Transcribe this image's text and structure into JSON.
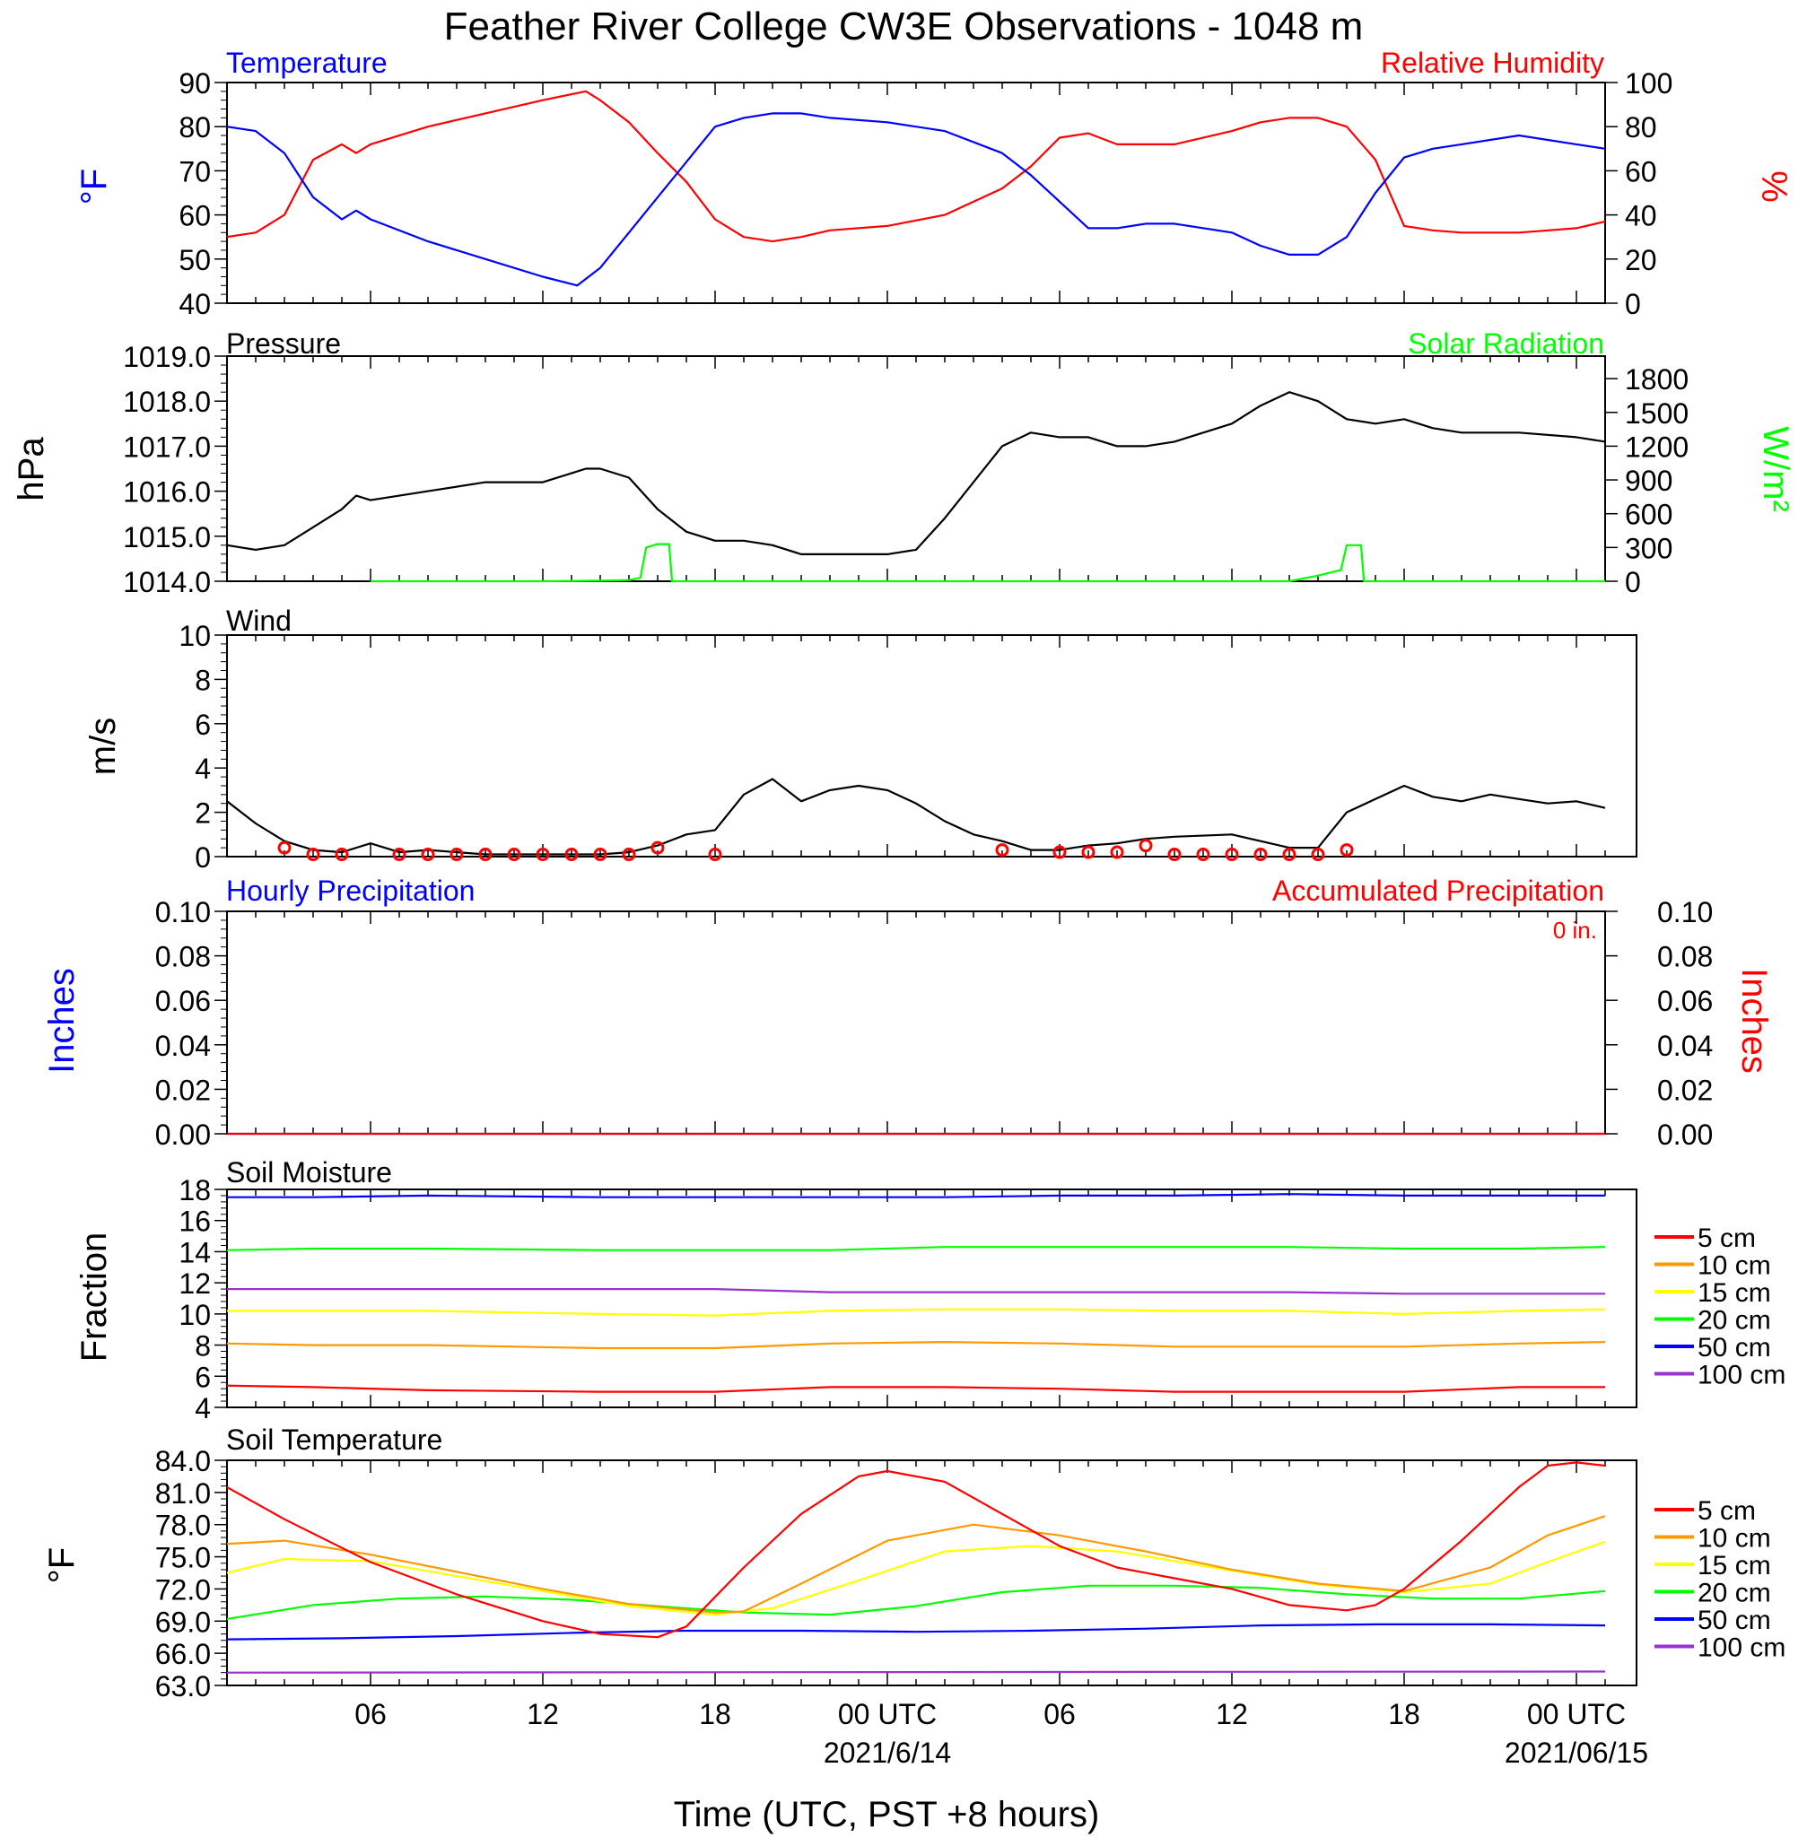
{
  "title": "Feather River College CW3E Observations - 1048 m",
  "x_axis": {
    "label": "Time (UTC, PST +8 hours)",
    "tick_labels": [
      "06",
      "12",
      "18",
      "00 UTC",
      "06",
      "12",
      "18",
      "00 UTC"
    ],
    "tick_hours": [
      6,
      12,
      18,
      24,
      30,
      36,
      42,
      48
    ],
    "dates": [
      "2021/6/14",
      "2021/06/15"
    ],
    "date_hours": [
      24,
      48
    ],
    "range_hours": [
      1,
      49
    ]
  },
  "colors": {
    "blue": "#0000ff",
    "red": "#ff0000",
    "green": "#00ff00",
    "orange": "#ff9900",
    "yellow": "#ffff00",
    "purple": "#9933cc",
    "black": "#000000"
  },
  "panels": {
    "temp": {
      "left_title": "Temperature",
      "right_title": "Relative Humidity",
      "ylabel_left": "°F",
      "ylabel_right": "%",
      "ylim_left": [
        40,
        90
      ],
      "ylim_right": [
        0,
        100
      ],
      "ticks_left": [
        "90",
        "80",
        "70",
        "60",
        "50",
        "40"
      ],
      "ticks_right": [
        "100",
        "80",
        "60",
        "40",
        "20",
        "0"
      ]
    },
    "pressure": {
      "left_title": "Pressure",
      "right_title": "Solar Radiation",
      "ylabel_left": "hPa",
      "ylabel_right": "W/m²",
      "ylim_left": [
        1014,
        1019
      ],
      "ylim_right": [
        0,
        2000
      ],
      "ticks_left": [
        "1019.0",
        "1018.0",
        "1017.0",
        "1016.0",
        "1015.0",
        "1014.0"
      ],
      "ticks_right": [
        "1800",
        "1500",
        "1200",
        "900",
        "600",
        "300",
        "0"
      ]
    },
    "wind": {
      "left_title": "Wind",
      "ylabel_left": "m/s",
      "ylim_left": [
        0,
        10
      ],
      "ticks_left": [
        "10",
        "8",
        "6",
        "4",
        "2",
        "0"
      ]
    },
    "precip": {
      "left_title": "Hourly Precipitation",
      "right_title": "Accumulated Precipitation",
      "total_label": "0 in.",
      "ylabel_left": "Inches",
      "ylabel_right": "Inches",
      "ylim_left": [
        0,
        0.1
      ],
      "ticks_left": [
        "0.10",
        "0.08",
        "0.06",
        "0.04",
        "0.02",
        "0.00"
      ],
      "ticks_right": [
        "0.10",
        "0.08",
        "0.06",
        "0.04",
        "0.02",
        "0.00"
      ]
    },
    "soil_moisture": {
      "left_title": "Soil Moisture",
      "ylabel_left": "Fraction",
      "ylim_left": [
        4,
        18
      ],
      "ticks_left": [
        "18",
        "16",
        "14",
        "12",
        "10",
        "8",
        "6",
        "4"
      ]
    },
    "soil_temp": {
      "left_title": "Soil Temperature",
      "ylabel_left": "°F",
      "ylim_left": [
        63,
        84
      ],
      "ticks_left": [
        "84.0",
        "81.0",
        "78.0",
        "75.0",
        "72.0",
        "69.0",
        "66.0",
        "63.0"
      ]
    }
  },
  "chart_data": [
    {
      "type": "line",
      "name": "temperature_rh",
      "series": [
        {
          "name": "Temperature",
          "axis": "left",
          "color": "#0000ff",
          "x": [
            1,
            2,
            3,
            4,
            5,
            5.5,
            6,
            8,
            10,
            12,
            13.2,
            14,
            15,
            16,
            17,
            18,
            19,
            20,
            21,
            22,
            24,
            26,
            28,
            29,
            30,
            31,
            32,
            33,
            34,
            36,
            37,
            38,
            39,
            40,
            41,
            42,
            43,
            44,
            46,
            48,
            49
          ],
          "y": [
            80,
            79,
            74,
            64,
            59,
            61,
            59,
            54,
            50,
            46,
            44,
            48,
            56,
            64,
            72,
            80,
            82,
            83,
            83,
            82,
            81,
            79,
            74,
            69,
            63,
            57,
            57,
            58,
            58,
            56,
            53,
            51,
            51,
            55,
            65,
            73,
            75,
            76,
            78,
            76,
            75
          ]
        },
        {
          "name": "Relative Humidity",
          "axis": "right",
          "color": "#ff0000",
          "x": [
            1,
            2,
            3,
            4,
            5,
            5.5,
            6,
            8,
            10,
            12,
            13.5,
            14,
            15,
            16,
            17,
            18,
            19,
            20,
            21,
            22,
            24,
            26,
            28,
            29,
            30,
            31,
            32,
            33,
            34,
            36,
            37,
            38,
            39,
            40,
            41,
            42,
            43,
            44,
            46,
            48,
            49
          ],
          "y": [
            30,
            32,
            40,
            65,
            72,
            68,
            72,
            80,
            86,
            92,
            96,
            92,
            82,
            68,
            55,
            38,
            30,
            28,
            30,
            33,
            35,
            40,
            52,
            62,
            75,
            77,
            72,
            72,
            72,
            78,
            82,
            84,
            84,
            80,
            65,
            35,
            33,
            32,
            32,
            34,
            37
          ]
        }
      ]
    },
    {
      "type": "line",
      "name": "pressure_solar",
      "series": [
        {
          "name": "Pressure",
          "axis": "left",
          "color": "#000000",
          "x": [
            1,
            2,
            3,
            4,
            5,
            5.5,
            6,
            8,
            10,
            12,
            13.5,
            14,
            15,
            16,
            17,
            18,
            19,
            20,
            21,
            22,
            24,
            25,
            26,
            27,
            28,
            29,
            30,
            31,
            32,
            33,
            34,
            36,
            37,
            38,
            39,
            40,
            41,
            42,
            43,
            44,
            46,
            48,
            49
          ],
          "y": [
            1014.8,
            1014.7,
            1014.8,
            1015.2,
            1015.6,
            1015.9,
            1015.8,
            1016.0,
            1016.2,
            1016.2,
            1016.5,
            1016.5,
            1016.3,
            1015.6,
            1015.1,
            1014.9,
            1014.9,
            1014.8,
            1014.6,
            1014.6,
            1014.6,
            1014.7,
            1015.4,
            1016.2,
            1017.0,
            1017.3,
            1017.2,
            1017.2,
            1017.0,
            1017.0,
            1017.1,
            1017.5,
            1017.9,
            1018.2,
            1018.0,
            1017.6,
            1017.5,
            1017.6,
            1017.4,
            1017.3,
            1017.3,
            1017.2,
            1017.1
          ]
        },
        {
          "name": "Solar Radiation",
          "axis": "right",
          "color": "#00ff00",
          "x": [
            6,
            8,
            10,
            12,
            14,
            15,
            15.4,
            15.6,
            16,
            16.4,
            16.5,
            30,
            32,
            34,
            36,
            38,
            39,
            39.8,
            40,
            40.5,
            40.6,
            49
          ],
          "y": [
            0,
            0,
            0,
            0,
            5,
            10,
            30,
            300,
            330,
            330,
            0,
            0,
            0,
            0,
            0,
            0,
            50,
            100,
            320,
            320,
            0,
            0
          ]
        }
      ]
    },
    {
      "type": "line",
      "name": "wind",
      "series": [
        {
          "name": "Wind",
          "color": "#000000",
          "x": [
            1,
            2,
            3,
            4,
            5,
            6,
            7,
            8,
            10,
            12,
            14,
            15,
            16,
            17,
            18,
            19,
            20,
            21,
            22,
            23,
            24,
            25,
            26,
            27,
            28,
            29,
            30,
            31,
            32,
            33,
            34,
            36,
            37,
            38,
            39,
            40,
            41,
            42,
            43,
            44,
            45,
            46,
            47,
            48,
            49
          ],
          "y": [
            2.5,
            1.5,
            0.7,
            0.3,
            0.2,
            0.6,
            0.2,
            0.3,
            0.1,
            0.1,
            0.1,
            0.2,
            0.5,
            1.0,
            1.2,
            2.8,
            3.5,
            2.5,
            3.0,
            3.2,
            3.0,
            2.4,
            1.6,
            1.0,
            0.7,
            0.3,
            0.3,
            0.5,
            0.6,
            0.8,
            0.9,
            1.0,
            0.7,
            0.4,
            0.4,
            2.0,
            2.6,
            3.2,
            2.7,
            2.5,
            2.8,
            2.6,
            2.4,
            2.5,
            2.2
          ]
        }
      ]
    },
    {
      "type": "line",
      "name": "precipitation",
      "series": [
        {
          "name": "Hourly Precipitation",
          "color": "#0000ff",
          "x": [
            1,
            49
          ],
          "y": [
            0,
            0
          ]
        },
        {
          "name": "Accumulated Precipitation",
          "color": "#ff0000",
          "x": [
            1,
            49
          ],
          "y": [
            0,
            0
          ]
        }
      ]
    },
    {
      "type": "line",
      "name": "soil_moisture",
      "series": [
        {
          "name": "5 cm",
          "color": "#ff0000",
          "x": [
            1,
            4,
            8,
            14,
            18,
            22,
            26,
            30,
            34,
            38,
            42,
            46,
            49
          ],
          "y": [
            5.4,
            5.3,
            5.1,
            5.0,
            5.0,
            5.3,
            5.3,
            5.2,
            5.0,
            5.0,
            5.0,
            5.3,
            5.3
          ]
        },
        {
          "name": "10 cm",
          "color": "#ff9900",
          "x": [
            1,
            4,
            8,
            14,
            18,
            22,
            26,
            30,
            34,
            38,
            42,
            46,
            49
          ],
          "y": [
            8.1,
            8.0,
            8.0,
            7.8,
            7.8,
            8.1,
            8.2,
            8.1,
            7.9,
            7.9,
            7.9,
            8.1,
            8.2
          ]
        },
        {
          "name": "15 cm",
          "color": "#ffff00",
          "x": [
            1,
            4,
            8,
            14,
            18,
            22,
            26,
            30,
            34,
            38,
            42,
            46,
            49
          ],
          "y": [
            10.2,
            10.2,
            10.2,
            10.0,
            9.9,
            10.2,
            10.3,
            10.3,
            10.2,
            10.2,
            10.0,
            10.2,
            10.3
          ]
        },
        {
          "name": "20 cm",
          "color": "#00ff00",
          "x": [
            1,
            4,
            8,
            14,
            18,
            22,
            26,
            30,
            34,
            38,
            42,
            46,
            49
          ],
          "y": [
            14.1,
            14.2,
            14.2,
            14.1,
            14.1,
            14.1,
            14.3,
            14.3,
            14.3,
            14.3,
            14.2,
            14.2,
            14.3
          ]
        },
        {
          "name": "50 cm",
          "color": "#0000ff",
          "x": [
            1,
            4,
            8,
            14,
            18,
            22,
            26,
            30,
            34,
            38,
            42,
            46,
            49
          ],
          "y": [
            17.5,
            17.5,
            17.6,
            17.5,
            17.5,
            17.5,
            17.5,
            17.6,
            17.6,
            17.7,
            17.6,
            17.6,
            17.6
          ]
        },
        {
          "name": "100 cm",
          "color": "#9933cc",
          "x": [
            1,
            4,
            8,
            14,
            18,
            22,
            26,
            30,
            34,
            38,
            42,
            46,
            49
          ],
          "y": [
            11.6,
            11.6,
            11.6,
            11.6,
            11.6,
            11.4,
            11.4,
            11.4,
            11.4,
            11.4,
            11.3,
            11.3,
            11.3
          ]
        }
      ]
    },
    {
      "type": "line",
      "name": "soil_temperature",
      "series": [
        {
          "name": "5 cm",
          "color": "#ff0000",
          "x": [
            1,
            3,
            6,
            9,
            12,
            14,
            16,
            17,
            19,
            21,
            23,
            24,
            26,
            28,
            30,
            32,
            34,
            36,
            38,
            40,
            41,
            42,
            44,
            46,
            47,
            48,
            49
          ],
          "y": [
            81.5,
            78.5,
            74.5,
            71.5,
            69,
            67.8,
            67.5,
            68.5,
            74,
            79,
            82.5,
            83,
            82,
            79,
            76,
            74,
            73,
            72,
            70.5,
            70,
            70.5,
            72,
            76.5,
            81.5,
            83.5,
            83.8,
            83.5
          ]
        },
        {
          "name": "10 cm",
          "color": "#ff9900",
          "x": [
            1,
            3,
            6,
            9,
            12,
            15,
            18,
            19,
            21,
            24,
            27,
            30,
            33,
            36,
            39,
            42,
            45,
            47,
            49
          ],
          "y": [
            76.2,
            76.5,
            75.2,
            73.6,
            72,
            70.6,
            69.8,
            69.9,
            72.5,
            76.5,
            78,
            77,
            75.5,
            73.8,
            72.5,
            71.8,
            74,
            77,
            78.8
          ]
        },
        {
          "name": "15 cm",
          "color": "#ffff00",
          "x": [
            1,
            3,
            6,
            9,
            12,
            15,
            18,
            20,
            23,
            26,
            29,
            32,
            36,
            39,
            42,
            45,
            47,
            49
          ],
          "y": [
            73.5,
            74.8,
            74.6,
            73.2,
            71.8,
            70.4,
            69.6,
            70.2,
            72.8,
            75.5,
            76,
            75.5,
            73.7,
            72.4,
            71.7,
            72.5,
            74.5,
            76.4
          ]
        },
        {
          "name": "20 cm",
          "color": "#00ff00",
          "x": [
            1,
            4,
            7,
            10,
            13,
            16,
            19,
            22,
            25,
            28,
            31,
            34,
            37,
            40,
            43,
            46,
            49
          ],
          "y": [
            69.2,
            70.5,
            71.1,
            71.3,
            71,
            70.4,
            69.8,
            69.6,
            70.4,
            71.7,
            72.3,
            72.3,
            72.1,
            71.5,
            71.1,
            71.1,
            71.8
          ]
        },
        {
          "name": "50 cm",
          "color": "#0000ff",
          "x": [
            1,
            5,
            9,
            13,
            17,
            21,
            25,
            29,
            33,
            37,
            41,
            45,
            49
          ],
          "y": [
            67.3,
            67.4,
            67.6,
            67.9,
            68.1,
            68.1,
            68,
            68.1,
            68.3,
            68.6,
            68.7,
            68.7,
            68.6
          ]
        },
        {
          "name": "100 cm",
          "color": "#9933cc",
          "x": [
            1,
            49
          ],
          "y": [
            64.2,
            64.3
          ]
        }
      ]
    }
  ],
  "legend": [
    "5 cm",
    "10 cm",
    "15 cm",
    "20 cm",
    "50 cm",
    "100 cm"
  ],
  "wind_barbs": {
    "hours_with_circles": [
      3,
      4,
      5,
      7,
      8,
      9,
      10,
      11,
      12,
      13,
      14,
      15,
      16,
      18,
      28,
      30,
      31,
      32,
      33,
      34,
      35,
      36,
      37,
      38,
      39,
      40
    ],
    "speed_values": [
      0.4,
      0.1,
      0.1,
      0.1,
      0.1,
      0.1,
      0.1,
      0.1,
      0.1,
      0.1,
      0.1,
      0.1,
      0.4,
      0.1,
      0.3,
      0.2,
      0.2,
      0.2,
      0.5,
      0.1,
      0.1,
      0.1,
      0.1,
      0.1,
      0.1,
      0.3
    ]
  }
}
